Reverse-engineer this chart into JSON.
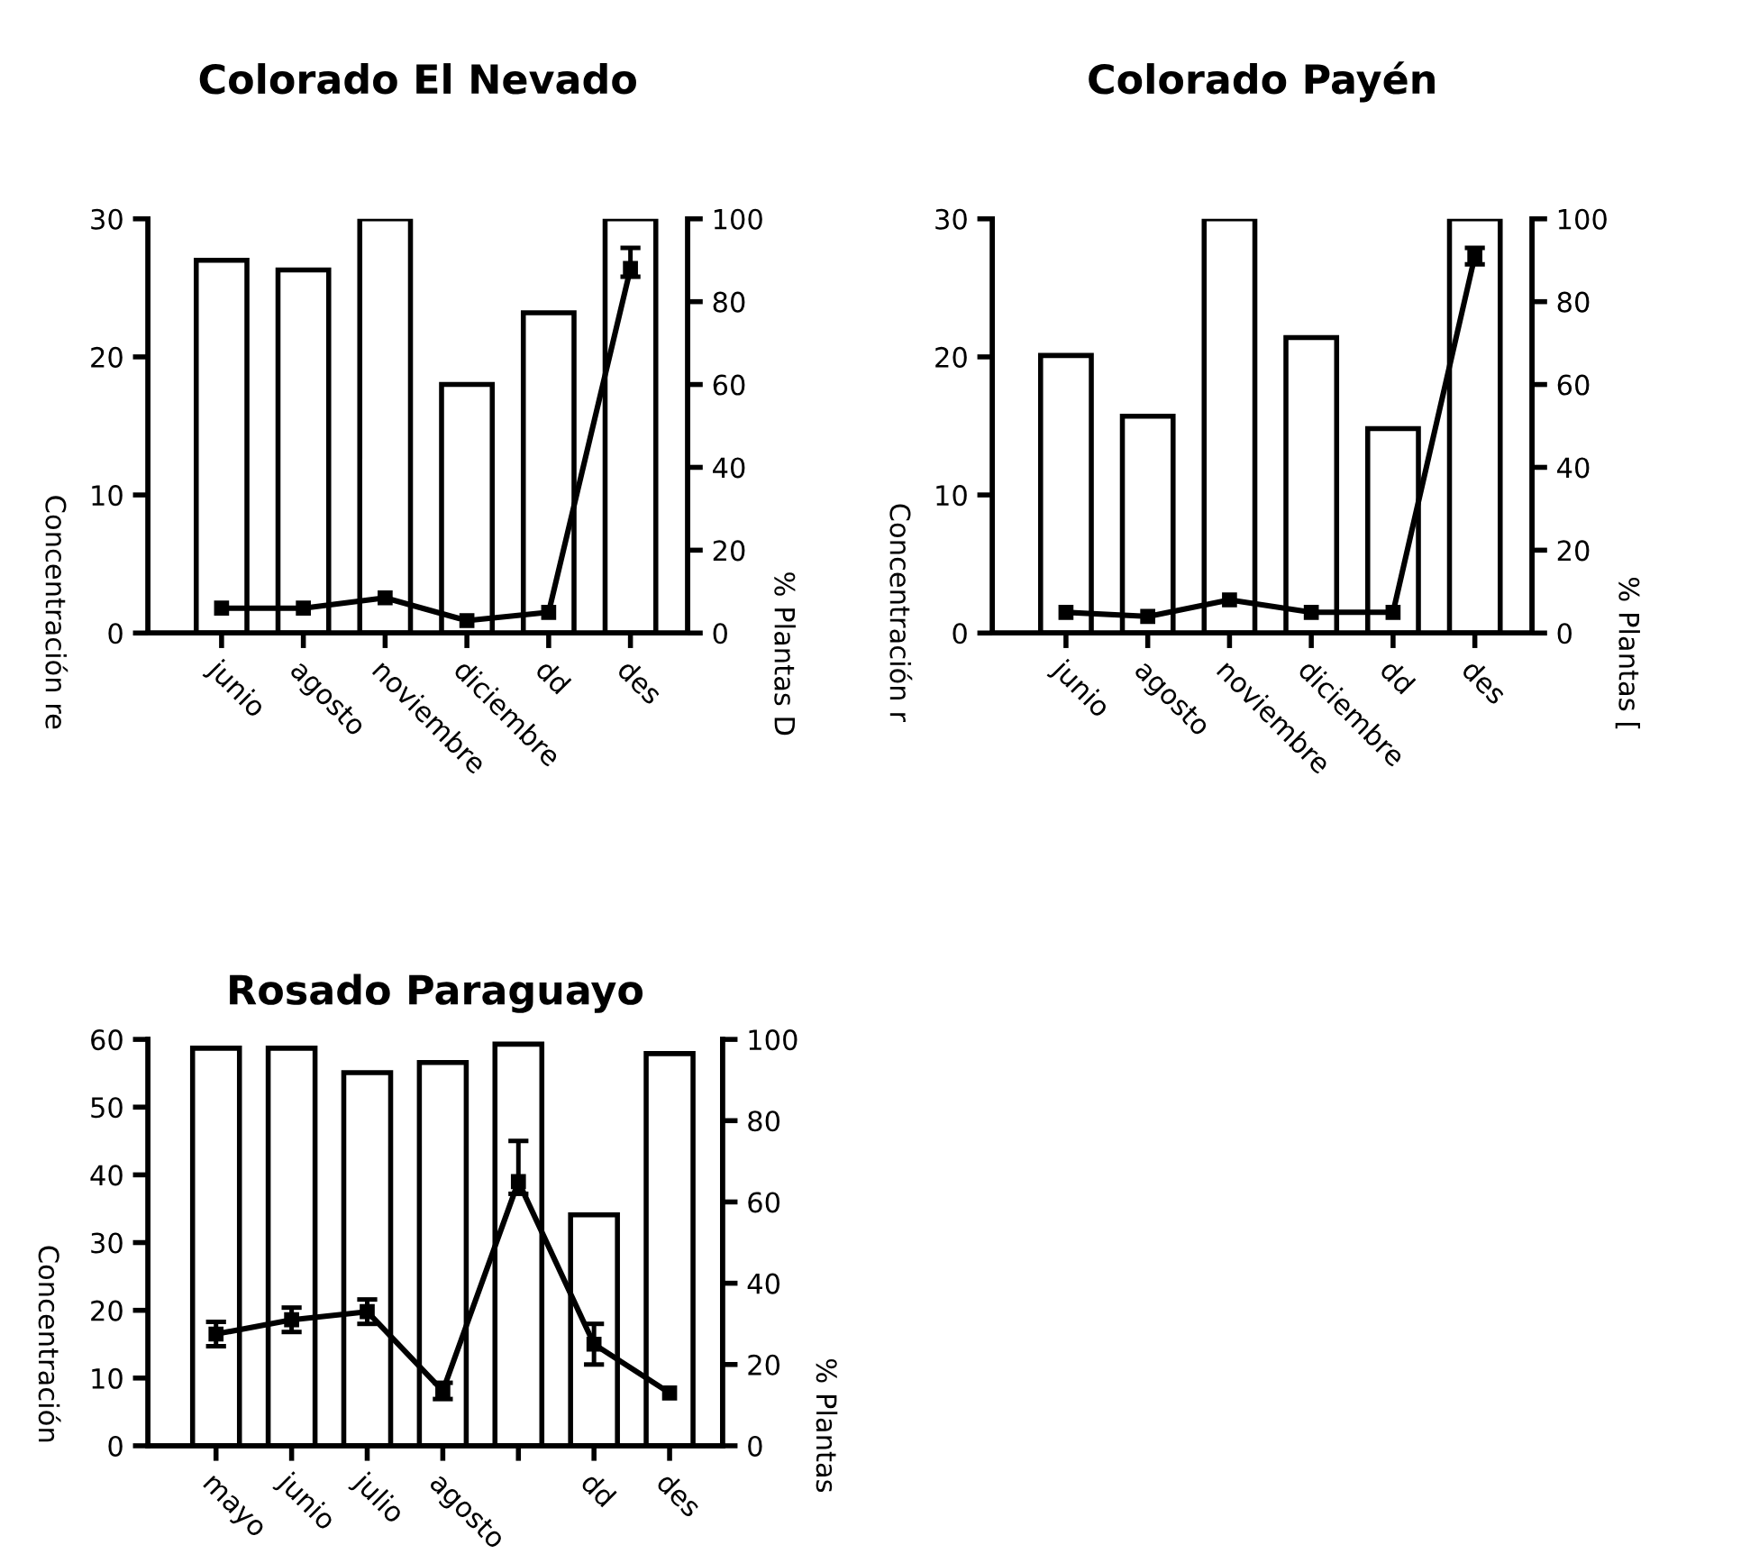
{
  "chart_data": [
    {
      "type": "bar",
      "title": "Colorado El Nevado",
      "ylabel": "Concentración re",
      "y2label": "% Plantas D",
      "categories": [
        "junio",
        "agosto",
        "noviembre",
        "diciembre",
        "dd",
        "des"
      ],
      "series": [
        {
          "color": "#ffffff",
          "values": [
            27,
            26.3,
            30,
            18,
            23.2,
            30
          ]
        },
        {
          "type": "line",
          "axis": "y2",
          "color": "#000000",
          "values": [
            6,
            6,
            8.5,
            3,
            5,
            88
          ],
          "errors": [
            null,
            null,
            null,
            null,
            null,
            [
              86,
              93
            ]
          ]
        }
      ],
      "ylim": [
        0,
        30
      ],
      "yticks": [
        0,
        10,
        20,
        30
      ],
      "y2lim": [
        0,
        100
      ],
      "y2ticks": [
        0,
        20,
        40,
        60,
        80,
        100
      ],
      "grid": false,
      "legend": false,
      "marker": "square",
      "line_style": "solid"
    },
    {
      "type": "bar",
      "title": "Colorado Payén",
      "ylabel": "Concentración r",
      "y2label": "% Plantas [",
      "categories": [
        "junio",
        "agosto",
        "noviembre",
        "diciembre",
        "dd",
        "des"
      ],
      "series": [
        {
          "color": "#ffffff",
          "values": [
            20.1,
            15.7,
            30,
            21.4,
            14.8,
            30
          ]
        },
        {
          "type": "line",
          "axis": "y2",
          "color": "#000000",
          "values": [
            5,
            4,
            8,
            5,
            5,
            91
          ],
          "errors": [
            null,
            null,
            null,
            null,
            null,
            2
          ]
        }
      ],
      "ylim": [
        0,
        30
      ],
      "yticks": [
        0,
        10,
        20,
        30
      ],
      "y2lim": [
        0,
        100
      ],
      "y2ticks": [
        0,
        20,
        40,
        60,
        80,
        100
      ],
      "grid": false,
      "legend": false,
      "marker": "square",
      "line_style": "solid"
    },
    {
      "type": "bar",
      "title": "Rosado Paraguayo",
      "ylabel": "Concentración",
      "y2label": "% Plantas",
      "categories": [
        "mayo",
        "junio",
        "julio",
        "agosto",
        null,
        "dd",
        "des"
      ],
      "series": [
        {
          "color": "#ffffff",
          "values": [
            58.7,
            58.7,
            55.1,
            56.6,
            59.3,
            34.1,
            57.9
          ]
        },
        {
          "type": "line",
          "axis": "y2",
          "color": "#000000",
          "values": [
            27.5,
            31,
            33,
            13.5,
            65,
            25,
            13
          ],
          "errors": [
            3,
            3,
            3,
            2,
            [
              62,
              75
            ],
            5,
            null
          ]
        }
      ],
      "ylim": [
        0,
        60
      ],
      "yticks": [
        0,
        10,
        20,
        30,
        40,
        50,
        60
      ],
      "y2lim": [
        0,
        100
      ],
      "y2ticks": [
        0,
        20,
        40,
        60,
        80,
        100
      ],
      "grid": false,
      "legend": false,
      "marker": "square",
      "line_style": "solid"
    }
  ]
}
